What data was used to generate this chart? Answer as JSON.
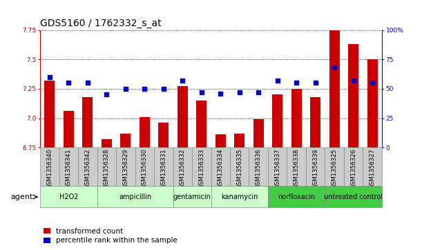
{
  "title": "GDS5160 / 1762332_s_at",
  "samples": [
    "GSM1356340",
    "GSM1356341",
    "GSM1356342",
    "GSM1356328",
    "GSM1356329",
    "GSM1356330",
    "GSM1356331",
    "GSM1356332",
    "GSM1356333",
    "GSM1356334",
    "GSM1356335",
    "GSM1356336",
    "GSM1356337",
    "GSM1356338",
    "GSM1356339",
    "GSM1356325",
    "GSM1356326",
    "GSM1356327"
  ],
  "transformed_count": [
    7.32,
    7.06,
    7.18,
    6.82,
    6.87,
    7.01,
    6.96,
    7.27,
    7.15,
    6.86,
    6.87,
    6.99,
    7.2,
    7.25,
    7.18,
    7.75,
    7.63,
    7.5
  ],
  "percentile_rank": [
    60,
    55,
    55,
    45,
    50,
    50,
    50,
    57,
    47,
    46,
    47,
    47,
    57,
    55,
    55,
    68,
    57,
    55
  ],
  "groups": [
    {
      "name": "H2O2",
      "start": 0,
      "end": 3,
      "light": true
    },
    {
      "name": "ampicillin",
      "start": 3,
      "end": 7,
      "light": true
    },
    {
      "name": "gentamicin",
      "start": 7,
      "end": 9,
      "light": true
    },
    {
      "name": "kanamycin",
      "start": 9,
      "end": 12,
      "light": true
    },
    {
      "name": "norfloxacin",
      "start": 12,
      "end": 15,
      "light": false
    },
    {
      "name": "untreated control",
      "start": 15,
      "end": 18,
      "light": false
    }
  ],
  "ylim_left": [
    6.75,
    7.75
  ],
  "ylim_right": [
    0,
    100
  ],
  "yticks_left": [
    6.75,
    7.0,
    7.25,
    7.5,
    7.75
  ],
  "yticks_right": [
    0,
    25,
    50,
    75,
    100
  ],
  "bar_color": "#cc0000",
  "dot_color": "#0000cc",
  "background_color": "#ffffff",
  "group_color_light": "#ccffcc",
  "group_color_dark": "#44cc44",
  "sample_box_color": "#cccccc",
  "title_fontsize": 10,
  "tick_fontsize": 6.5,
  "group_fontsize": 7,
  "legend_fontsize": 7.5,
  "legend_bar": "transformed count",
  "legend_dot": "percentile rank within the sample",
  "agent_label": "agent"
}
